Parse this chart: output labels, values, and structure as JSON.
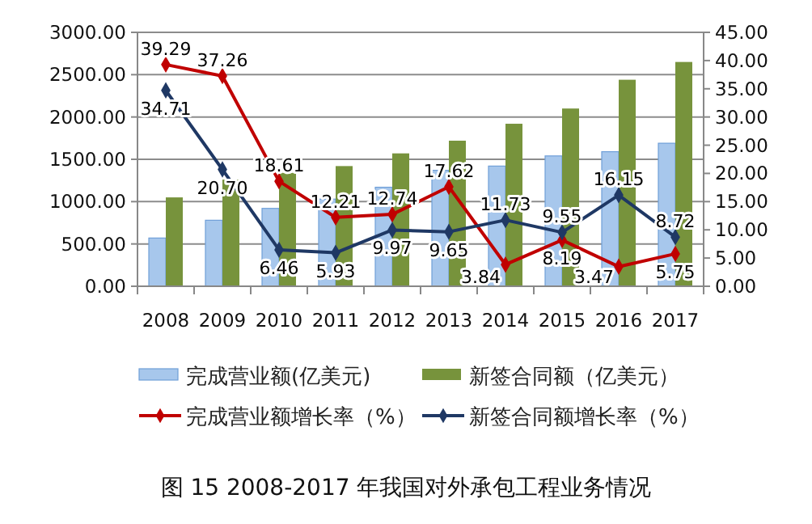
{
  "chart_data": {
    "type": "bar",
    "title": "图 15 2008-2017 年我国对外承包工程业务情况",
    "categories": [
      "2008",
      "2009",
      "2010",
      "2011",
      "2012",
      "2013",
      "2014",
      "2015",
      "2016",
      "2017"
    ],
    "series": [
      {
        "name": "完成营业额(亿美元)",
        "color": "#a7c7ec",
        "values": [
          570,
          780,
          920,
          1030,
          1170,
          1370,
          1420,
          1540,
          1590,
          1690
        ]
      },
      {
        "name": "新签合同额（亿美元）",
        "color": "#77933c",
        "values": [
          1050,
          1260,
          1340,
          1420,
          1570,
          1720,
          1920,
          2100,
          2440,
          2650
        ]
      },
      {
        "name": "完成营业额增长率（%）",
        "color": "#c00000",
        "type": "line",
        "axis": "y2",
        "values": [
          39.29,
          37.26,
          18.61,
          12.21,
          12.74,
          17.62,
          3.84,
          8.19,
          3.47,
          5.75
        ],
        "value_labels": [
          "39.29",
          "37.26",
          "18.61",
          "12.21",
          "12.74",
          "17.62",
          "3.84",
          "8.19",
          "3.47",
          "5.75"
        ]
      },
      {
        "name": "新签合同额增长率（%）",
        "color": "#1f3864",
        "type": "line",
        "axis": "y2",
        "values": [
          34.71,
          20.7,
          6.46,
          5.93,
          9.97,
          9.65,
          11.73,
          9.55,
          16.15,
          8.72
        ],
        "value_labels": [
          "34.71",
          "20.70",
          "6.46",
          "5.93",
          "9.97",
          "9.65",
          "11.73",
          "9.55",
          "16.15",
          "8.72"
        ]
      }
    ],
    "ylim": [
      0,
      3000
    ],
    "yticks": [
      {
        "value": 0,
        "label": "0.00"
      },
      {
        "value": 500,
        "label": "500.00"
      },
      {
        "value": 1000,
        "label": "1000.00"
      },
      {
        "value": 1500,
        "label": "1500.00"
      },
      {
        "value": 2000,
        "label": "2000.00"
      },
      {
        "value": 2500,
        "label": "2500.00"
      },
      {
        "value": 3000,
        "label": "3000.00"
      }
    ],
    "y2lim": [
      0,
      45
    ],
    "y2ticks": [
      {
        "value": 0,
        "label": "0.00"
      },
      {
        "value": 5,
        "label": "5.00"
      },
      {
        "value": 10,
        "label": "10.00"
      },
      {
        "value": 15,
        "label": "15.00"
      },
      {
        "value": 20,
        "label": "20.00"
      },
      {
        "value": 25,
        "label": "25.00"
      },
      {
        "value": 30,
        "label": "30.00"
      },
      {
        "value": 35,
        "label": "35.00"
      },
      {
        "value": 40,
        "label": "40.00"
      },
      {
        "value": 45,
        "label": "45.00"
      }
    ],
    "grid": "y",
    "legend": "bottom",
    "marker": "diamond"
  }
}
